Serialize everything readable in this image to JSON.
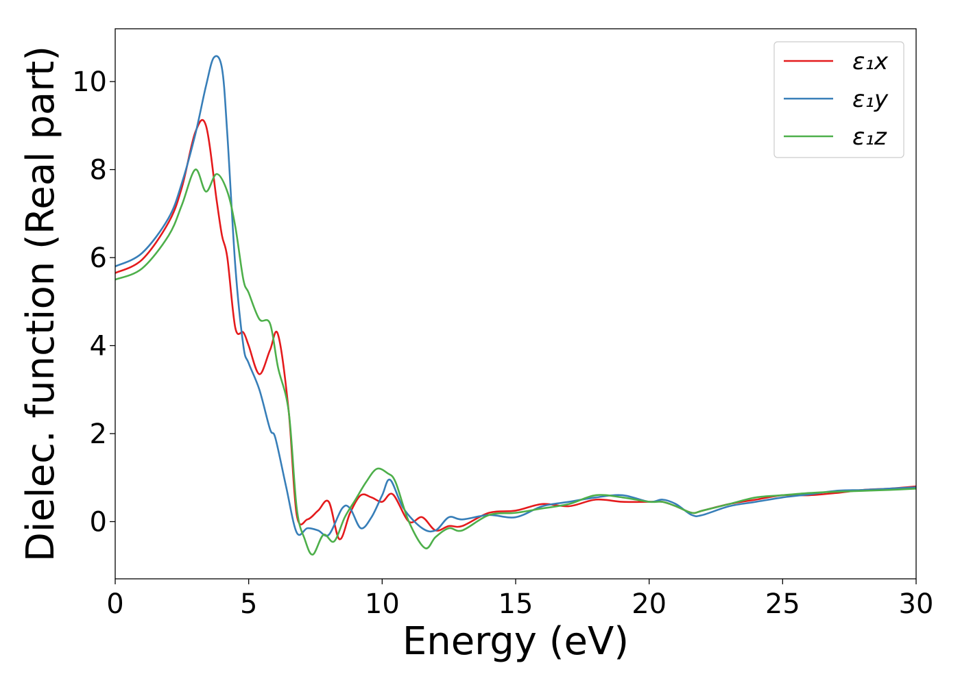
{
  "chart_data": {
    "type": "line",
    "title": "",
    "xlabel": "Energy (eV)",
    "ylabel": "Dielec. function (Real part)",
    "xlim": [
      0,
      30
    ],
    "ylim": [
      -1.3,
      11.2
    ],
    "xticks": [
      0,
      5,
      10,
      15,
      20,
      25,
      30
    ],
    "yticks": [
      0,
      2,
      4,
      6,
      8,
      10
    ],
    "grid": false,
    "legend_position": "top-right",
    "series": [
      {
        "name": "ε₁x",
        "color": "#e41a1c",
        "x": [
          0,
          1.0,
          2.0,
          2.5,
          3.0,
          3.4,
          3.8,
          4.0,
          4.2,
          4.5,
          4.8,
          5.0,
          5.4,
          5.8,
          6.1,
          6.5,
          6.8,
          7.2,
          7.6,
          8.0,
          8.4,
          8.8,
          9.2,
          9.6,
          10.0,
          10.4,
          11.0,
          11.5,
          12.0,
          12.5,
          13.0,
          14.0,
          15.0,
          16.0,
          17.0,
          18.0,
          19.0,
          20.0,
          20.5,
          21.0,
          21.6,
          22.0,
          23.0,
          24.0,
          25.0,
          26.0,
          27.0,
          28.0,
          29.0,
          30.0
        ],
        "y": [
          5.65,
          5.95,
          6.8,
          7.6,
          8.85,
          9.0,
          7.3,
          6.5,
          6.0,
          4.4,
          4.3,
          4.0,
          3.35,
          3.9,
          4.25,
          2.5,
          0.15,
          0.05,
          0.25,
          0.45,
          -0.4,
          0.2,
          0.6,
          0.55,
          0.45,
          0.62,
          0.0,
          0.1,
          -0.2,
          -0.1,
          -0.1,
          0.2,
          0.25,
          0.4,
          0.35,
          0.5,
          0.45,
          0.45,
          0.45,
          0.35,
          0.2,
          0.25,
          0.4,
          0.5,
          0.6,
          0.6,
          0.65,
          0.72,
          0.75,
          0.8
        ]
      },
      {
        "name": "ε₁y",
        "color": "#377eb8",
        "x": [
          0,
          1.0,
          2.0,
          2.5,
          3.0,
          3.4,
          3.7,
          4.0,
          4.2,
          4.5,
          4.8,
          5.0,
          5.4,
          5.8,
          6.0,
          6.4,
          6.8,
          7.2,
          7.6,
          8.0,
          8.5,
          8.8,
          9.2,
          9.6,
          10.0,
          10.3,
          10.8,
          11.5,
          12.0,
          12.5,
          13.0,
          14.0,
          15.0,
          16.0,
          17.0,
          18.0,
          19.0,
          20.0,
          20.5,
          21.0,
          21.6,
          22.0,
          23.0,
          24.0,
          25.0,
          26.0,
          27.0,
          28.0,
          29.0,
          30.0
        ],
        "y": [
          5.8,
          6.1,
          6.9,
          7.7,
          8.8,
          9.9,
          10.55,
          10.3,
          8.8,
          5.8,
          4.0,
          3.6,
          3.0,
          2.1,
          1.9,
          0.8,
          -0.25,
          -0.15,
          -0.2,
          -0.3,
          0.3,
          0.3,
          -0.15,
          0.1,
          0.6,
          0.95,
          0.3,
          -0.15,
          -0.2,
          0.1,
          0.05,
          0.15,
          0.1,
          0.35,
          0.45,
          0.55,
          0.6,
          0.45,
          0.5,
          0.4,
          0.15,
          0.15,
          0.35,
          0.45,
          0.55,
          0.62,
          0.7,
          0.72,
          0.75,
          0.78
        ]
      },
      {
        "name": "ε₁z",
        "color": "#4daf4a",
        "x": [
          0,
          1.0,
          2.0,
          2.5,
          3.0,
          3.4,
          3.8,
          4.2,
          4.5,
          4.8,
          5.0,
          5.4,
          5.8,
          6.1,
          6.5,
          6.8,
          7.1,
          7.4,
          7.8,
          8.2,
          8.6,
          9.0,
          9.4,
          9.8,
          10.2,
          10.5,
          11.0,
          11.6,
          12.0,
          12.5,
          13.0,
          14.0,
          15.0,
          16.0,
          17.0,
          18.0,
          19.0,
          20.0,
          20.5,
          21.0,
          21.6,
          22.0,
          23.0,
          24.0,
          25.0,
          26.0,
          27.0,
          28.0,
          29.0,
          30.0
        ],
        "y": [
          5.5,
          5.75,
          6.5,
          7.2,
          8.0,
          7.5,
          7.9,
          7.5,
          6.7,
          5.5,
          5.2,
          4.6,
          4.5,
          3.5,
          2.5,
          0.3,
          -0.4,
          -0.75,
          -0.3,
          -0.45,
          0.1,
          0.5,
          0.9,
          1.2,
          1.1,
          0.9,
          0.0,
          -0.6,
          -0.35,
          -0.15,
          -0.2,
          0.15,
          0.2,
          0.3,
          0.4,
          0.6,
          0.55,
          0.45,
          0.45,
          0.35,
          0.2,
          0.25,
          0.4,
          0.55,
          0.6,
          0.65,
          0.68,
          0.7,
          0.72,
          0.75
        ]
      }
    ]
  }
}
